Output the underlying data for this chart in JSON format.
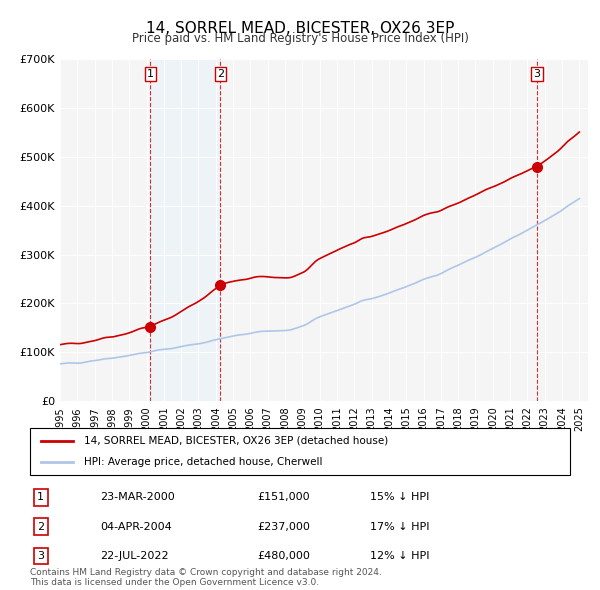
{
  "title": "14, SORREL MEAD, BICESTER, OX26 3EP",
  "subtitle": "Price paid vs. HM Land Registry's House Price Index (HPI)",
  "ylabel": "",
  "xlabel": "",
  "ylim": [
    0,
    700000
  ],
  "yticks": [
    0,
    100000,
    200000,
    300000,
    400000,
    500000,
    600000,
    700000
  ],
  "ytick_labels": [
    "£0",
    "£100K",
    "£200K",
    "£300K",
    "£400K",
    "£500K",
    "£600K",
    "£700K"
  ],
  "sale_dates": [
    2000.22,
    2004.26,
    2022.55
  ],
  "sale_prices": [
    151000,
    237000,
    480000
  ],
  "sale_labels": [
    "1",
    "2",
    "3"
  ],
  "hpi_color": "#aec6e8",
  "price_color": "#cc0000",
  "sale_point_color": "#cc0000",
  "vline_color": "#cc0000",
  "shade_color": "#ddeeff",
  "legend_label_price": "14, SORREL MEAD, BICESTER, OX26 3EP (detached house)",
  "legend_label_hpi": "HPI: Average price, detached house, Cherwell",
  "table_data": [
    {
      "label": "1",
      "date": "23-MAR-2000",
      "price": "£151,000",
      "pct": "15% ↓ HPI"
    },
    {
      "label": "2",
      "date": "04-APR-2004",
      "price": "£237,000",
      "pct": "17% ↓ HPI"
    },
    {
      "label": "3",
      "date": "22-JUL-2022",
      "price": "£480,000",
      "pct": "12% ↓ HPI"
    }
  ],
  "footnote": "Contains HM Land Registry data © Crown copyright and database right 2024.\nThis data is licensed under the Open Government Licence v3.0.",
  "background_color": "#ffffff",
  "plot_bg_color": "#f5f5f5"
}
